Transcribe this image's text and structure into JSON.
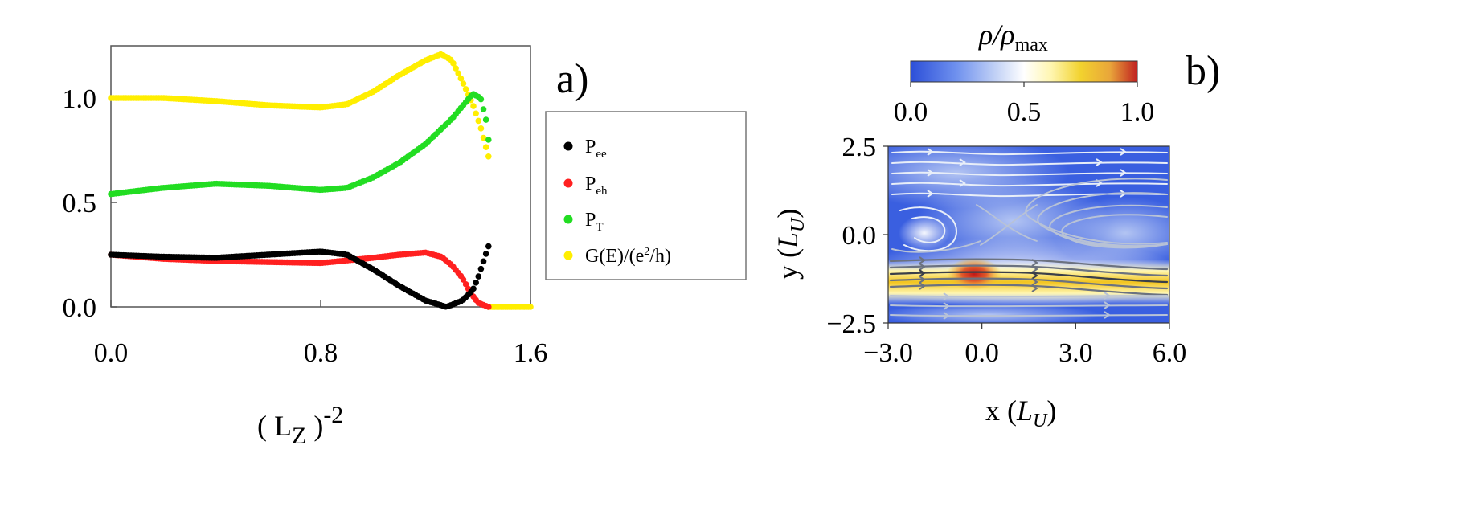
{
  "panel_a": {
    "label": "a)",
    "xlabel_base": "( L",
    "xlabel_sub": "Z",
    "xlabel_close": " )",
    "xlabel_sup": "-2",
    "xticks": [
      "0.0",
      "0.8",
      "1.6"
    ],
    "yticks": [
      "0.0",
      "0.5",
      "1.0"
    ],
    "legend": [
      {
        "base": "P",
        "sub": "ee",
        "color": "#000000"
      },
      {
        "base": "P",
        "sub": "eh",
        "color": "#ff2020"
      },
      {
        "base": "P",
        "sub": "T",
        "color": "#22dd22"
      },
      {
        "base": "G(E)/(e",
        "sup": "2",
        "tail": "/h)",
        "color": "#ffee00"
      }
    ]
  },
  "panel_b": {
    "label": "b)",
    "colorbar_title": "ρ/ρmax",
    "colorbar_ticks": [
      "0.0",
      "0.5",
      "1.0"
    ],
    "xlabel": "x (LU)",
    "ylabel": "y (LU)",
    "xticks": [
      "−3.0",
      "0.0",
      "3.0",
      "6.0"
    ],
    "yticks": [
      "2.5",
      "0.0",
      "−2.5"
    ]
  },
  "chart_data": [
    {
      "type": "scatter",
      "xlim": [
        0,
        1.6
      ],
      "ylim": [
        0,
        1.25
      ],
      "x_range_points": [
        0,
        1.44
      ],
      "series": [
        {
          "name": "Pee",
          "color": "#000000",
          "points": [
            [
              0,
              0.25
            ],
            [
              0.2,
              0.24
            ],
            [
              0.4,
              0.235
            ],
            [
              0.6,
              0.25
            ],
            [
              0.8,
              0.265
            ],
            [
              0.9,
              0.25
            ],
            [
              1.0,
              0.18
            ],
            [
              1.1,
              0.1
            ],
            [
              1.2,
              0.03
            ],
            [
              1.28,
              0.0
            ],
            [
              1.34,
              0.03
            ],
            [
              1.38,
              0.08
            ],
            [
              1.4,
              0.14
            ],
            [
              1.44,
              0.29
            ]
          ]
        },
        {
          "name": "Peh",
          "color": "#ff2020",
          "points": [
            [
              0,
              0.25
            ],
            [
              0.2,
              0.23
            ],
            [
              0.4,
              0.22
            ],
            [
              0.6,
              0.215
            ],
            [
              0.8,
              0.21
            ],
            [
              1.0,
              0.235
            ],
            [
              1.1,
              0.25
            ],
            [
              1.2,
              0.26
            ],
            [
              1.26,
              0.24
            ],
            [
              1.3,
              0.2
            ],
            [
              1.34,
              0.14
            ],
            [
              1.37,
              0.07
            ],
            [
              1.4,
              0.02
            ],
            [
              1.44,
              0.0
            ]
          ]
        },
        {
          "name": "PT",
          "color": "#22dd22",
          "points": [
            [
              0,
              0.54
            ],
            [
              0.2,
              0.57
            ],
            [
              0.4,
              0.59
            ],
            [
              0.6,
              0.58
            ],
            [
              0.8,
              0.56
            ],
            [
              0.9,
              0.57
            ],
            [
              1.0,
              0.62
            ],
            [
              1.1,
              0.69
            ],
            [
              1.2,
              0.78
            ],
            [
              1.3,
              0.9
            ],
            [
              1.36,
              0.99
            ],
            [
              1.38,
              1.02
            ],
            [
              1.41,
              1.0
            ],
            [
              1.43,
              0.9
            ],
            [
              1.44,
              0.8
            ]
          ]
        },
        {
          "name": "G(E)/(e2/h)",
          "color": "#ffee00",
          "points": [
            [
              0,
              1.0
            ],
            [
              0.2,
              1.0
            ],
            [
              0.4,
              0.985
            ],
            [
              0.6,
              0.965
            ],
            [
              0.8,
              0.955
            ],
            [
              0.9,
              0.97
            ],
            [
              1.0,
              1.03
            ],
            [
              1.1,
              1.11
            ],
            [
              1.2,
              1.18
            ],
            [
              1.26,
              1.21
            ],
            [
              1.3,
              1.18
            ],
            [
              1.34,
              1.08
            ],
            [
              1.38,
              0.97
            ],
            [
              1.41,
              0.86
            ],
            [
              1.44,
              0.72
            ]
          ],
          "tail": [
            [
              1.44,
              0.0
            ],
            [
              1.6,
              0.0
            ]
          ]
        }
      ]
    },
    {
      "type": "heatmap",
      "xlim": [
        -3.0,
        6.0
      ],
      "ylim": [
        -2.5,
        2.5
      ],
      "colorbar_range": [
        0,
        1
      ],
      "colormap": [
        "#2c4fd8",
        "#6e90ee",
        "#c4d3f6",
        "#ffffff",
        "#fff6b0",
        "#f2d22e",
        "#e9a53a",
        "#c02020"
      ],
      "features": {
        "high_density_band_y": -1.3,
        "peak": {
          "x": -0.3,
          "y": -1.1,
          "value": 1.0
        },
        "vortex_center": {
          "x": -1.7,
          "y": 0.0
        }
      }
    }
  ]
}
